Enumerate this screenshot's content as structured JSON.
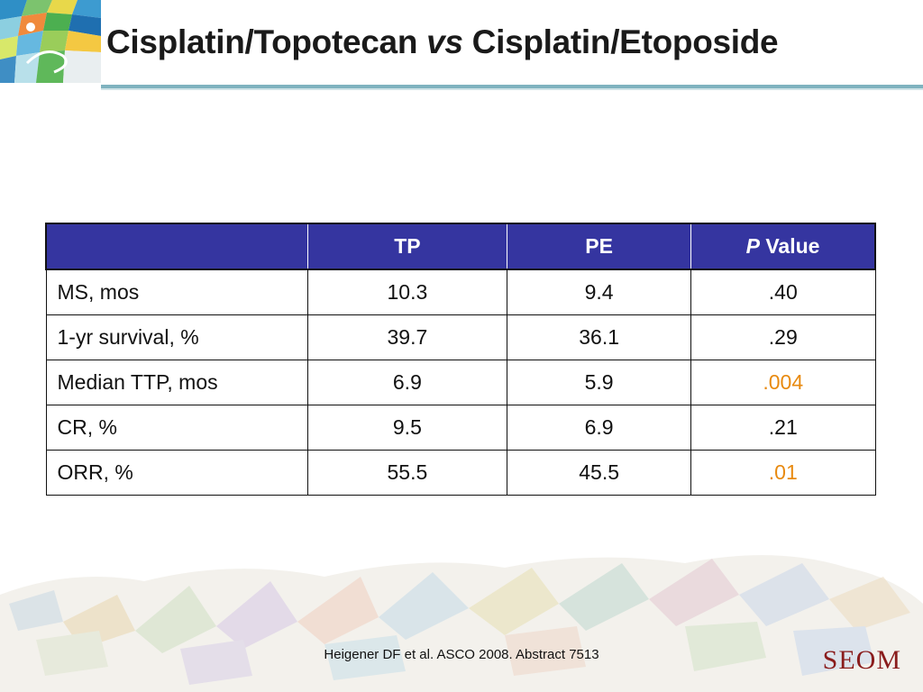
{
  "slide": {
    "title_part1": "Cisplatin/Topotecan ",
    "title_italic": "vs",
    "title_part2": " Cisplatin/Etoposide"
  },
  "table": {
    "headers": [
      "",
      "TP",
      "PE",
      "P Value"
    ],
    "header_p_italic": "P",
    "header_p_rest": " Value",
    "rows": [
      {
        "label": "MS, mos",
        "tp": "10.3",
        "pe": "9.4",
        "p": ".40"
      },
      {
        "label": "1-yr survival, %",
        "tp": "39.7",
        "pe": "36.1",
        "p": ".29"
      },
      {
        "label": "Median TTP, mos",
        "tp": "6.9",
        "pe": "5.9",
        "p": ".004"
      },
      {
        "label": "CR, %",
        "tp": "9.5",
        "pe": "6.9",
        "p": ".21"
      },
      {
        "label": "ORR, %",
        "tp": "55.5",
        "pe": "45.5",
        "p": ".01"
      }
    ]
  },
  "footer": {
    "citation": "Heigener DF et al. ASCO 2008. Abstract 7513",
    "brand": "SEOM"
  },
  "colors": {
    "header_bg": "#3535a0",
    "significant": "#e88a10",
    "accent_rule": "#7fb3bf",
    "brand": "#8a1c1c"
  }
}
